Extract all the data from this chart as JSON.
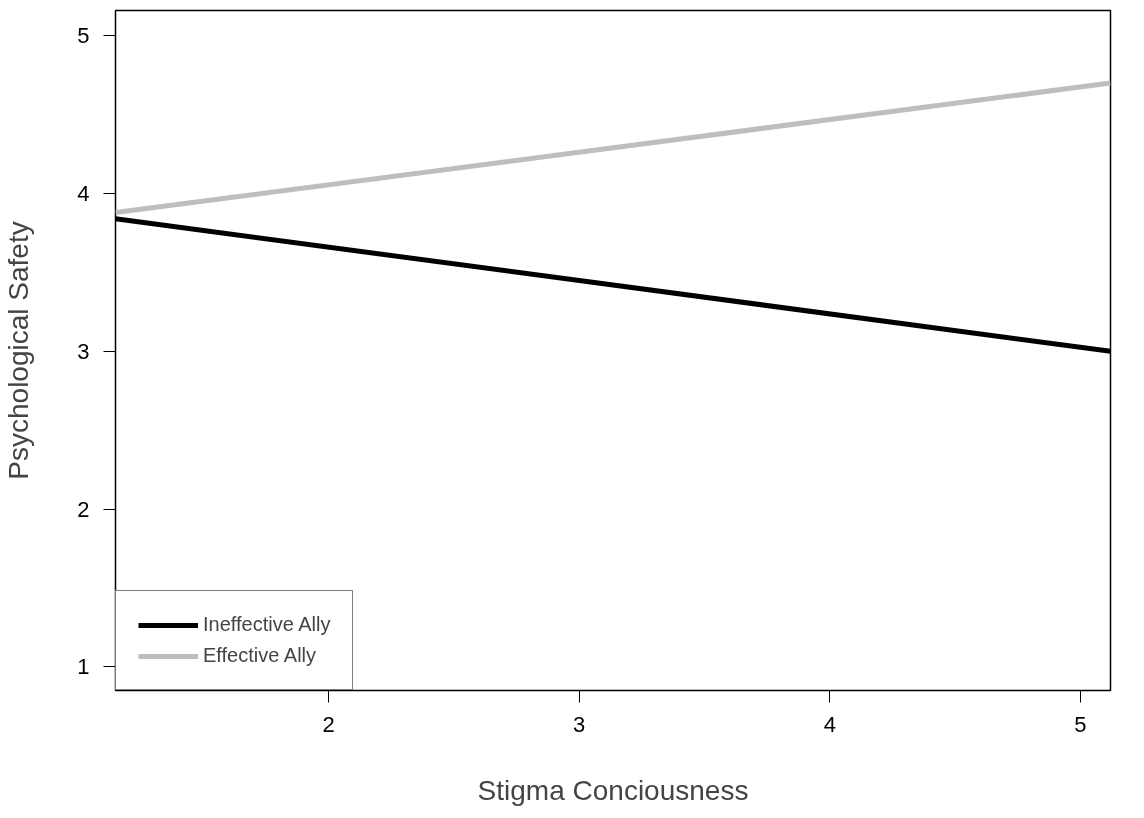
{
  "chart_data": {
    "type": "line",
    "xlabel": "Stigma Conciousness",
    "ylabel": "Psychological Safety",
    "x": [
      1.15,
      5.12
    ],
    "series": [
      {
        "name": "Ineffective Ally",
        "color": "#000000",
        "values": [
          3.84,
          3.0
        ]
      },
      {
        "name": "Effective Ally",
        "color": "#bebebe",
        "values": [
          3.88,
          4.7
        ]
      }
    ],
    "xlim": [
      1.15,
      5.12
    ],
    "ylim": [
      0.85,
      5.16
    ],
    "xticks": [
      2,
      3,
      4,
      5
    ],
    "yticks": [
      1,
      2,
      3,
      4,
      5
    ],
    "grid": false,
    "legend": "bottom left",
    "line_style": "solid",
    "marker": "none"
  }
}
